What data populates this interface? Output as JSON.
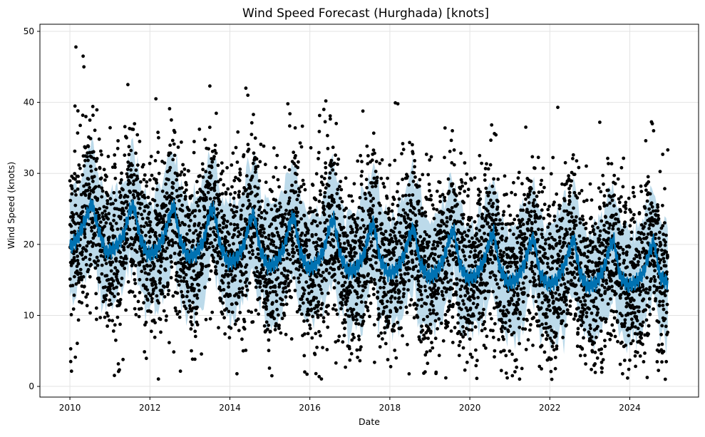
{
  "chart_data": {
    "type": "scatter",
    "title": "Wind Speed Forecast (Hurghada) [knots]",
    "xlabel": "Date",
    "ylabel": "Wind Speed (knots)",
    "xlim": [
      2009.25,
      2025.72
    ],
    "ylim": [
      -1.5,
      51
    ],
    "grid": true,
    "x_ticks": [
      2010,
      2012,
      2014,
      2016,
      2018,
      2020,
      2022,
      2024
    ],
    "x_tick_labels": [
      "2010",
      "2012",
      "2014",
      "2016",
      "2018",
      "2020",
      "2022",
      "2024"
    ],
    "y_ticks": [
      0,
      10,
      20,
      30,
      40,
      50
    ],
    "y_tick_labels": [
      "0",
      "10",
      "20",
      "30",
      "40",
      "50"
    ],
    "colors": {
      "observed": "#000000",
      "forecast": "#0072B2",
      "interval": "#a6cee3"
    },
    "forecast": {
      "name": "",
      "x": [
        2010.0,
        2010.2,
        2010.45,
        2010.55,
        2010.7,
        2010.9,
        2011.1,
        2011.35,
        2011.5,
        2011.6,
        2011.75,
        2011.95,
        2012.15,
        2012.35,
        2012.5,
        2012.6,
        2012.75,
        2012.95,
        2013.15,
        2013.35,
        2013.5,
        2013.6,
        2013.75,
        2013.95,
        2014.15,
        2014.35,
        2014.5,
        2014.6,
        2014.75,
        2014.95,
        2015.15,
        2015.35,
        2015.5,
        2015.6,
        2015.75,
        2015.95,
        2016.15,
        2016.35,
        2016.5,
        2016.6,
        2016.75,
        2016.95,
        2017.15,
        2017.35,
        2017.5,
        2017.6,
        2017.75,
        2017.95,
        2018.15,
        2018.35,
        2018.5,
        2018.6,
        2018.75,
        2018.95,
        2019.15,
        2019.35,
        2019.5,
        2019.6,
        2019.75,
        2019.95,
        2020.15,
        2020.35,
        2020.5,
        2020.6,
        2020.75,
        2020.95,
        2021.15,
        2021.35,
        2021.5,
        2021.6,
        2021.75,
        2021.95,
        2022.15,
        2022.35,
        2022.5,
        2022.6,
        2022.75,
        2022.95,
        2023.15,
        2023.35,
        2023.5,
        2023.6,
        2023.75,
        2023.95,
        2024.15,
        2024.35,
        2024.5,
        2024.6,
        2024.75,
        2024.95
      ],
      "yhat": [
        19.5,
        21.0,
        24.5,
        26.0,
        22.5,
        19.0,
        19.5,
        21.5,
        25.0,
        25.5,
        21.0,
        18.5,
        19.0,
        21.0,
        24.0,
        25.5,
        20.5,
        18.0,
        18.5,
        20.5,
        24.5,
        25.0,
        20.0,
        17.5,
        18.0,
        20.0,
        23.5,
        24.5,
        19.5,
        17.0,
        17.5,
        19.5,
        23.0,
        24.0,
        19.0,
        16.5,
        17.0,
        19.0,
        22.5,
        23.5,
        18.5,
        16.0,
        16.5,
        18.5,
        22.0,
        23.0,
        18.0,
        16.0,
        16.5,
        18.5,
        21.5,
        22.5,
        17.5,
        15.5,
        16.0,
        18.0,
        21.0,
        22.0,
        17.0,
        15.0,
        15.5,
        17.5,
        20.5,
        21.5,
        16.5,
        14.5,
        15.0,
        17.0,
        20.0,
        21.0,
        16.0,
        14.5,
        15.0,
        17.0,
        19.5,
        21.0,
        16.0,
        14.0,
        14.5,
        16.5,
        19.5,
        20.5,
        15.5,
        14.0,
        14.5,
        16.0,
        19.0,
        20.5,
        15.5,
        14.5
      ],
      "band": 8
    },
    "observed_sample": {
      "x": [
        2010.02,
        2010.15,
        2010.2,
        2010.33,
        2010.35,
        2010.4,
        2010.5,
        2011.45,
        2012.15,
        2013.5,
        2014.4,
        2014.45,
        2015.45,
        2016.4,
        2016.35,
        2018.2,
        2021.4,
        2022.2,
        2023.25,
        2024.4,
        2024.95,
        2010.02,
        2015.05,
        2019.4,
        2022.05,
        2023.3
      ],
      "y": [
        3.5,
        47.8,
        38.8,
        46.5,
        45.0,
        38.0,
        37.5,
        42.5,
        40.5,
        42.3,
        42.0,
        41.0,
        39.8,
        40.2,
        39.0,
        39.8,
        36.5,
        39.3,
        37.2,
        34.6,
        33.3,
        5.3,
        1.5,
        1.2,
        1.0,
        2.0
      ]
    }
  }
}
